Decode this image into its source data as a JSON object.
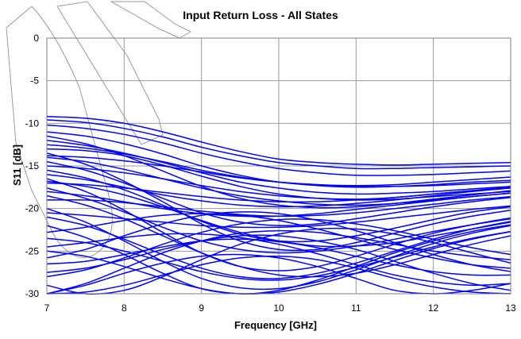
{
  "chart_data": {
    "type": "line",
    "title": "Input Return Loss - All States",
    "xlabel": "Frequency [GHz]",
    "ylabel": "S11 [dB]",
    "xlim": [
      7,
      13
    ],
    "ylim": [
      -30,
      0
    ],
    "xticks": [
      7,
      8,
      9,
      10,
      11,
      12,
      13
    ],
    "yticks": [
      0,
      -5,
      -10,
      -15,
      -20,
      -25,
      -30
    ],
    "grid": true,
    "legend": "none",
    "line_color": "#0000ff",
    "x": [
      7,
      7.5,
      8,
      8.5,
      9,
      9.5,
      10,
      10.5,
      11,
      11.5,
      12,
      12.5,
      13
    ],
    "series": [
      {
        "values": [
          -9.2,
          -9.4,
          -10.0,
          -11.0,
          -12.2,
          -13.3,
          -14.2,
          -14.6,
          -14.8,
          -14.9,
          -14.8,
          -14.7,
          -14.6
        ]
      },
      {
        "values": [
          -9.6,
          -9.9,
          -10.6,
          -11.6,
          -12.8,
          -13.8,
          -14.6,
          -15.0,
          -15.3,
          -15.3,
          -15.2,
          -15.1,
          -15.0
        ]
      },
      {
        "values": [
          -10.2,
          -10.6,
          -11.3,
          -12.3,
          -13.5,
          -14.5,
          -15.3,
          -15.8,
          -16.1,
          -16.1,
          -16.0,
          -15.8,
          -15.6
        ]
      },
      {
        "values": [
          -11.0,
          -11.5,
          -12.4,
          -13.6,
          -15.0,
          -16.1,
          -16.9,
          -17.3,
          -17.5,
          -17.4,
          -17.2,
          -16.9,
          -16.7
        ]
      },
      {
        "values": [
          -12.0,
          -12.6,
          -13.5,
          -14.6,
          -15.8,
          -16.9,
          -17.6,
          -18.1,
          -18.3,
          -18.2,
          -18.0,
          -17.7,
          -17.4
        ]
      },
      {
        "values": [
          -13.0,
          -13.2,
          -13.8,
          -14.9,
          -16.2,
          -17.4,
          -18.3,
          -18.8,
          -19.0,
          -18.9,
          -18.6,
          -18.3,
          -18.0
        ]
      },
      {
        "values": [
          -14.0,
          -14.5,
          -15.4,
          -16.5,
          -17.6,
          -18.5,
          -19.1,
          -19.5,
          -19.6,
          -19.4,
          -19.0,
          -18.6,
          -18.2
        ]
      },
      {
        "values": [
          -15.0,
          -15.3,
          -15.8,
          -16.5,
          -17.3,
          -18.0,
          -18.5,
          -18.8,
          -18.9,
          -18.7,
          -18.3,
          -17.9,
          -17.5
        ]
      },
      {
        "values": [
          -16.0,
          -16.6,
          -17.5,
          -18.4,
          -19.1,
          -19.6,
          -19.8,
          -19.7,
          -19.4,
          -19.0,
          -18.5,
          -18.0,
          -17.6
        ]
      },
      {
        "values": [
          -17.0,
          -17.2,
          -17.6,
          -18.1,
          -18.6,
          -19.0,
          -19.2,
          -19.2,
          -19.0,
          -18.7,
          -18.3,
          -17.9,
          -17.5
        ]
      },
      {
        "values": [
          -18.0,
          -18.5,
          -19.2,
          -20.0,
          -20.6,
          -20.9,
          -20.9,
          -20.6,
          -20.1,
          -19.6,
          -19.1,
          -18.6,
          -18.2
        ]
      },
      {
        "values": [
          -19.0,
          -19.0,
          -19.3,
          -19.8,
          -20.3,
          -20.7,
          -20.9,
          -20.8,
          -20.5,
          -20.0,
          -19.5,
          -19.0,
          -18.6
        ]
      },
      {
        "values": [
          -14.5,
          -15.5,
          -17.0,
          -18.8,
          -20.5,
          -21.6,
          -22.0,
          -21.8,
          -21.2,
          -20.5,
          -19.8,
          -19.2,
          -18.7
        ]
      },
      {
        "values": [
          -13.5,
          -14.8,
          -16.8,
          -19.2,
          -21.8,
          -23.8,
          -24.8,
          -24.8,
          -24.0,
          -22.9,
          -21.8,
          -20.9,
          -20.2
        ]
      },
      {
        "values": [
          -16.5,
          -18.0,
          -20.2,
          -22.8,
          -25.2,
          -26.8,
          -27.3,
          -26.8,
          -25.6,
          -24.2,
          -22.9,
          -21.9,
          -21.1
        ]
      },
      {
        "values": [
          -20.0,
          -21.6,
          -23.8,
          -26.2,
          -28.2,
          -29.3,
          -29.4,
          -28.6,
          -27.2,
          -25.6,
          -24.1,
          -22.9,
          -22.0
        ]
      },
      {
        "values": [
          -22.0,
          -23.4,
          -25.4,
          -27.6,
          -29.4,
          -30.0,
          -29.8,
          -28.9,
          -27.6,
          -26.1,
          -24.7,
          -23.6,
          -22.7
        ]
      },
      {
        "values": [
          -23.5,
          -24.0,
          -25.0,
          -26.2,
          -27.4,
          -28.2,
          -28.4,
          -27.9,
          -26.9,
          -25.7,
          -24.5,
          -23.5,
          -22.7
        ]
      },
      {
        "values": [
          -30.0,
          -28.8,
          -27.0,
          -25.2,
          -23.8,
          -22.9,
          -22.6,
          -22.8,
          -23.4,
          -24.2,
          -25.0,
          -25.6,
          -26.0
        ]
      },
      {
        "values": [
          -28.0,
          -27.2,
          -25.8,
          -24.2,
          -22.8,
          -21.8,
          -21.3,
          -21.3,
          -21.8,
          -22.6,
          -23.6,
          -24.6,
          -25.4
        ]
      },
      {
        "values": [
          -25.0,
          -25.6,
          -26.8,
          -28.2,
          -29.4,
          -30.0,
          -29.6,
          -28.4,
          -26.8,
          -25.2,
          -23.8,
          -22.7,
          -21.9
        ]
      },
      {
        "values": [
          -21.0,
          -22.0,
          -23.6,
          -25.4,
          -27.0,
          -28.0,
          -28.2,
          -27.6,
          -26.4,
          -25.0,
          -23.6,
          -22.4,
          -21.5
        ]
      },
      {
        "values": [
          -26.5,
          -26.2,
          -25.4,
          -24.5,
          -23.8,
          -23.6,
          -23.9,
          -24.6,
          -25.6,
          -26.6,
          -27.4,
          -27.8,
          -27.8
        ]
      },
      {
        "values": [
          -30.0,
          -29.8,
          -29.0,
          -27.8,
          -26.6,
          -25.8,
          -25.6,
          -26.0,
          -27.0,
          -28.2,
          -29.2,
          -29.8,
          -30.0
        ]
      },
      {
        "values": [
          -24.5,
          -24.0,
          -23.4,
          -23.0,
          -23.0,
          -23.4,
          -24.2,
          -25.3,
          -26.6,
          -27.8,
          -28.6,
          -29.0,
          -28.8
        ]
      },
      {
        "values": [
          -29.0,
          -30.0,
          -29.6,
          -28.0,
          -26.0,
          -24.2,
          -23.0,
          -22.4,
          -22.4,
          -23.0,
          -24.0,
          -25.2,
          -26.4
        ]
      },
      {
        "values": [
          -15.5,
          -16.4,
          -17.8,
          -19.6,
          -21.5,
          -23.0,
          -23.8,
          -23.8,
          -23.2,
          -22.3,
          -21.3,
          -20.4,
          -19.8
        ]
      },
      {
        "values": [
          -12.5,
          -12.9,
          -13.6,
          -14.5,
          -15.5,
          -16.3,
          -16.9,
          -17.2,
          -17.3,
          -17.2,
          -16.9,
          -16.6,
          -16.3
        ]
      },
      {
        "values": [
          -16.8,
          -17.4,
          -18.4,
          -19.8,
          -21.4,
          -22.8,
          -23.8,
          -24.4,
          -24.4,
          -24.0,
          -23.2,
          -22.4,
          -21.6
        ]
      },
      {
        "values": [
          -18.5,
          -19.6,
          -21.2,
          -23.2,
          -25.2,
          -26.8,
          -27.8,
          -28.0,
          -27.6,
          -26.6,
          -25.4,
          -24.2,
          -23.2
        ]
      },
      {
        "values": [
          -20.5,
          -20.8,
          -21.2,
          -21.6,
          -22.0,
          -22.2,
          -22.2,
          -22.0,
          -21.6,
          -21.1,
          -20.6,
          -20.1,
          -19.7
        ]
      },
      {
        "values": [
          -27.5,
          -27.0,
          -26.0,
          -24.8,
          -23.8,
          -23.2,
          -23.2,
          -23.8,
          -24.8,
          -26.2,
          -27.6,
          -28.8,
          -29.6
        ]
      },
      {
        "values": [
          -30.0,
          -29.0,
          -27.6,
          -26.4,
          -25.6,
          -25.4,
          -25.8,
          -26.8,
          -28.2,
          -29.6,
          -30.0,
          -29.6,
          -28.8
        ]
      },
      {
        "values": [
          -11.5,
          -12.4,
          -13.8,
          -15.6,
          -17.4,
          -18.8,
          -19.6,
          -19.9,
          -19.8,
          -19.4,
          -18.9,
          -18.4,
          -17.9
        ]
      },
      {
        "values": [
          -13.8,
          -14.0,
          -14.4,
          -15.0,
          -15.7,
          -16.4,
          -16.9,
          -17.2,
          -17.4,
          -17.4,
          -17.3,
          -17.1,
          -16.9
        ]
      },
      {
        "values": [
          -17.6,
          -18.8,
          -20.4,
          -22.2,
          -23.8,
          -24.8,
          -25.2,
          -25.0,
          -24.4,
          -23.6,
          -22.7,
          -21.9,
          -21.2
        ]
      },
      {
        "values": [
          -22.8,
          -22.2,
          -21.4,
          -20.8,
          -20.6,
          -20.8,
          -21.4,
          -22.4,
          -23.6,
          -24.8,
          -25.8,
          -26.6,
          -27.0
        ]
      },
      {
        "values": [
          -25.8,
          -24.8,
          -23.2,
          -21.8,
          -20.8,
          -20.4,
          -20.6,
          -21.4,
          -22.6,
          -24.0,
          -25.4,
          -26.6,
          -27.4
        ]
      }
    ]
  }
}
